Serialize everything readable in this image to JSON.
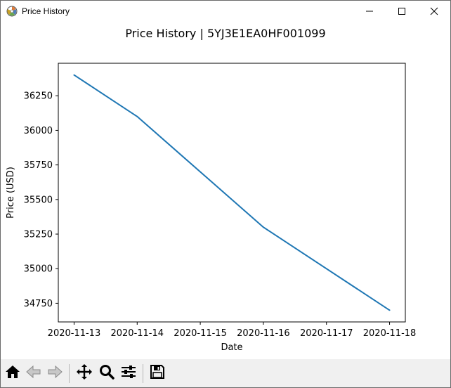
{
  "window": {
    "title": "Price History",
    "icon": "matplotlib-logo-icon",
    "controls": [
      "minimize-icon",
      "maximize-icon",
      "close-icon"
    ]
  },
  "chart_data": {
    "type": "line",
    "title": "Price History | 5YJ3E1EA0HF001099",
    "xlabel": "Date",
    "ylabel": "Price (USD)",
    "x": [
      "2020-11-13",
      "2020-11-14",
      "2020-11-16",
      "2020-11-18"
    ],
    "series": [
      {
        "values": [
          36400,
          36100,
          35300,
          34700
        ],
        "color": "#1f77b4"
      }
    ],
    "xticks": [
      "2020-11-13",
      "2020-11-14",
      "2020-11-15",
      "2020-11-16",
      "2020-11-17",
      "2020-11-18"
    ],
    "yticks": [
      34750,
      35000,
      35250,
      35500,
      35750,
      36000,
      36250
    ],
    "xlim": [
      "2020-11-12T18:00",
      "2020-11-18T06:00"
    ],
    "ylim": [
      34615,
      36485
    ],
    "grid": false,
    "legend": false
  },
  "toolbar": {
    "buttons": [
      {
        "name": "home-button",
        "icon": "home-icon"
      },
      {
        "name": "back-button",
        "icon": "left-arrow-icon"
      },
      {
        "name": "forward-button",
        "icon": "right-arrow-icon"
      },
      {
        "name": "pan-button",
        "icon": "move-icon"
      },
      {
        "name": "zoom-button",
        "icon": "magnifier-icon"
      },
      {
        "name": "configure-subplots-button",
        "icon": "sliders-icon"
      },
      {
        "name": "save-button",
        "icon": "floppy-disk-icon"
      }
    ]
  }
}
